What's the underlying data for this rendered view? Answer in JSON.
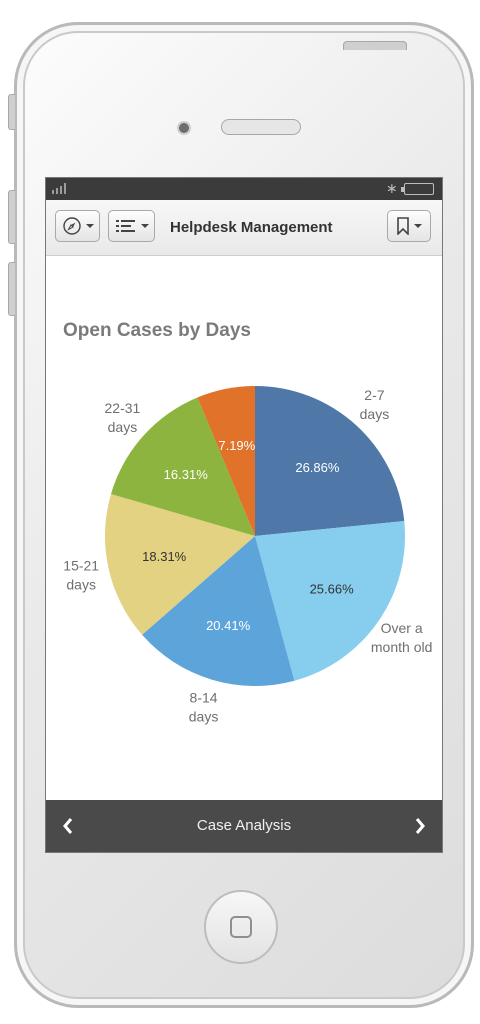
{
  "header": {
    "title": "Helpdesk Management"
  },
  "chart_data": {
    "type": "pie",
    "title": "Open Cases by Days",
    "slices": [
      {
        "label": "2-7 days",
        "label_lines": [
          "2-7",
          "days"
        ],
        "value": 26.86,
        "display": "26.86%",
        "color": "#4F77A8"
      },
      {
        "label": "Over a month old",
        "label_lines": [
          "Over a",
          "month old"
        ],
        "value": 25.66,
        "display": "25.66%",
        "color": "#86CDEE"
      },
      {
        "label": "8-14 days",
        "label_lines": [
          "8-14",
          "days"
        ],
        "value": 20.41,
        "display": "20.41%",
        "color": "#5CA4DA"
      },
      {
        "label": "15-21 days",
        "label_lines": [
          "15-21",
          "days"
        ],
        "value": 18.31,
        "display": "18.31%",
        "color": "#E2D282"
      },
      {
        "label": "22-31 days",
        "label_lines": [
          "22-31",
          "days"
        ],
        "value": 16.31,
        "display": "16.31%",
        "color": "#8CB43F"
      },
      {
        "label": "7.19%",
        "label_lines": [],
        "value": 7.19,
        "display": "7.19%",
        "color": "#E07229"
      }
    ]
  },
  "footer": {
    "label": "Case Analysis"
  },
  "icons": {
    "compass": "compass-icon",
    "list": "list-icon",
    "bookmark": "bookmark-icon",
    "prev": "chevron-left-icon",
    "next": "chevron-right-icon",
    "home": "home-button-icon"
  }
}
